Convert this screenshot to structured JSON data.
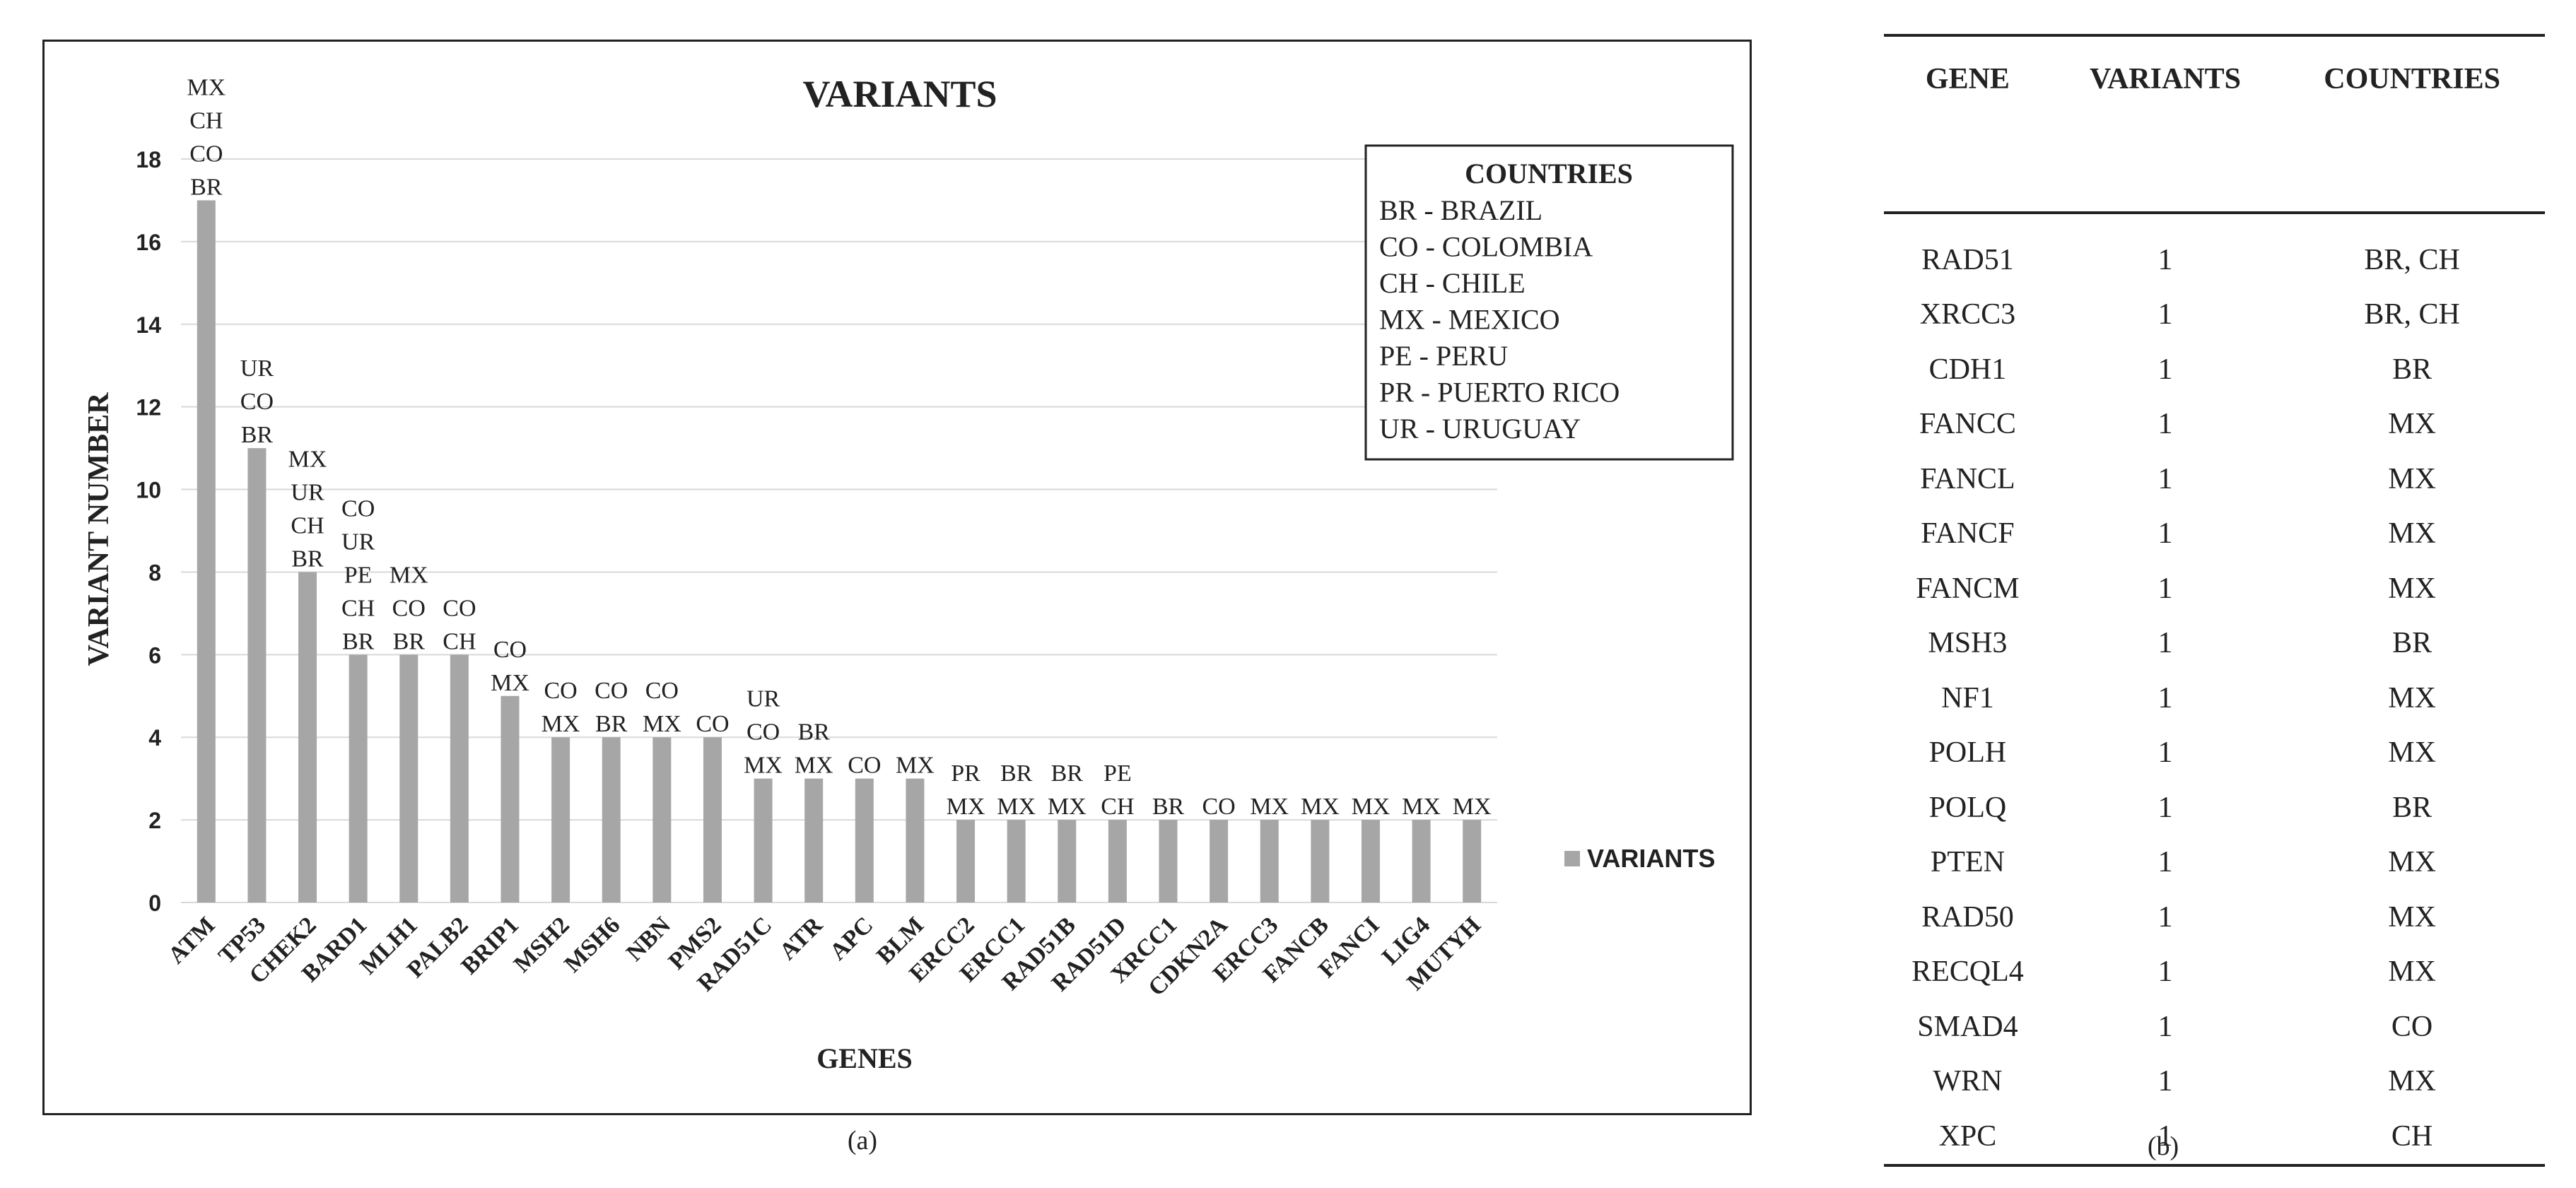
{
  "chart_data": {
    "type": "bar",
    "title": "VARIANTS",
    "xlabel": "GENES",
    "ylabel": "VARIANT NUMBER",
    "ylim": [
      0,
      18
    ],
    "yticks": [
      0,
      2,
      4,
      6,
      8,
      10,
      12,
      14,
      16,
      18
    ],
    "grid": true,
    "legend_position": "right",
    "bar_color": "#a6a6a6",
    "series": [
      {
        "name": "VARIANTS",
        "values": [
          17,
          11,
          8,
          6,
          6,
          6,
          5,
          4,
          4,
          4,
          4,
          3,
          3,
          3,
          3,
          2,
          2,
          2,
          2,
          2,
          2,
          2,
          2,
          2,
          2,
          2
        ]
      }
    ],
    "categories": [
      "ATM",
      "TP53",
      "CHEK2",
      "BARD1",
      "MLH1",
      "PALB2",
      "BRIP1",
      "MSH2",
      "MSH6",
      "NBN",
      "PMS2",
      "RAD51C",
      "ATR",
      "APC",
      "BLM",
      "ERCC2",
      "ERCC1",
      "RAD51B",
      "RAD51D",
      "XRCC1",
      "CDKN2A",
      "ERCC3",
      "FANCB",
      "FANCI",
      "LIG4",
      "MUTYH"
    ],
    "bar_labels": [
      [
        "MX",
        "CH",
        "CO",
        "BR"
      ],
      [
        "UR",
        "CO",
        "BR"
      ],
      [
        "MX",
        "UR",
        "CH",
        "BR"
      ],
      [
        "CO",
        "UR",
        "PE",
        "CH",
        "BR"
      ],
      [
        "MX",
        "CO",
        "BR"
      ],
      [
        "CO",
        "CH"
      ],
      [
        "CO",
        "MX"
      ],
      [
        "CO",
        "MX"
      ],
      [
        "CO",
        "BR"
      ],
      [
        "CO",
        "MX"
      ],
      [
        "CO"
      ],
      [
        "UR",
        "CO",
        "MX"
      ],
      [
        "BR",
        "MX"
      ],
      [
        "CO"
      ],
      [
        "MX"
      ],
      [
        "PR",
        "MX"
      ],
      [
        "BR",
        "MX"
      ],
      [
        "BR",
        "MX"
      ],
      [
        "PE",
        "CH"
      ],
      [
        "BR"
      ],
      [
        "CO"
      ],
      [
        "MX"
      ],
      [
        "MX"
      ],
      [
        "MX"
      ],
      [
        "MX"
      ],
      [
        "MX"
      ]
    ],
    "countries_box": {
      "title": "COUNTRIES",
      "entries": [
        "BR - BRAZIL",
        "CO - COLOMBIA",
        "CH - CHILE",
        "MX - MEXICO",
        "PE - PERU",
        "PR - PUERTO RICO",
        "UR - URUGUAY"
      ]
    }
  },
  "captions": {
    "a": "(a)",
    "b": "(b)"
  },
  "table": {
    "headers": [
      "GENE",
      "VARIANTS",
      "COUNTRIES"
    ],
    "rows": [
      [
        "RAD51",
        "1",
        "BR, CH"
      ],
      [
        "XRCC3",
        "1",
        "BR, CH"
      ],
      [
        "CDH1",
        "1",
        "BR"
      ],
      [
        "FANCC",
        "1",
        "MX"
      ],
      [
        "FANCL",
        "1",
        "MX"
      ],
      [
        "FANCF",
        "1",
        "MX"
      ],
      [
        "FANCM",
        "1",
        "MX"
      ],
      [
        "MSH3",
        "1",
        "BR"
      ],
      [
        "NF1",
        "1",
        "MX"
      ],
      [
        "POLH",
        "1",
        "MX"
      ],
      [
        "POLQ",
        "1",
        "BR"
      ],
      [
        "PTEN",
        "1",
        "MX"
      ],
      [
        "RAD50",
        "1",
        "MX"
      ],
      [
        "RECQL4",
        "1",
        "MX"
      ],
      [
        "SMAD4",
        "1",
        "CO"
      ],
      [
        "WRN",
        "1",
        "MX"
      ],
      [
        "XPC",
        "1",
        "CH"
      ]
    ]
  }
}
